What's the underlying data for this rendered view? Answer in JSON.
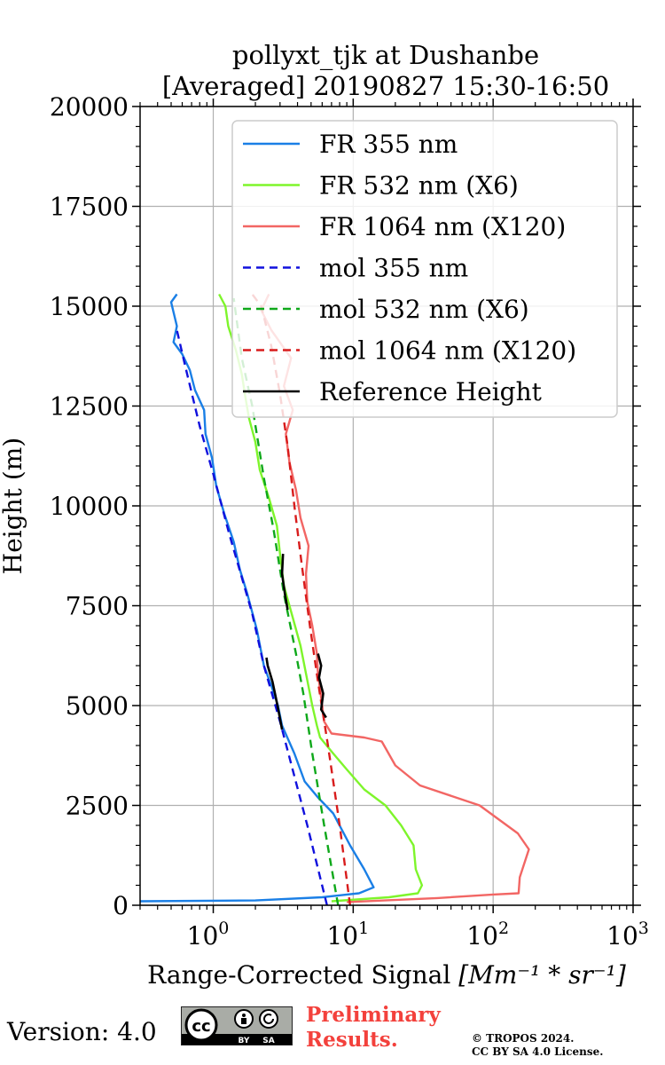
{
  "chart_data": {
    "type": "line",
    "title": "pollyxt_tjk at Dushanbe",
    "subtitle": "[Averaged] 20190827 15:30-16:50",
    "xlabel": "Range-Corrected Signal",
    "xlabel_unit": "[Mm⁻¹ * sr⁻¹]",
    "ylabel": "Height (m)",
    "xscale": "log",
    "xlim": [
      0.3,
      1000
    ],
    "ylim": [
      0,
      20000
    ],
    "grid": true,
    "legend_position": "top-right",
    "yticks": [
      0,
      2500,
      5000,
      7500,
      10000,
      12500,
      15000,
      17500,
      20000
    ],
    "xticks": [
      {
        "value": 1,
        "base": "10",
        "exp": "0"
      },
      {
        "value": 10,
        "base": "10",
        "exp": "1"
      },
      {
        "value": 100,
        "base": "10",
        "exp": "2"
      },
      {
        "value": 1000,
        "base": "10",
        "exp": "3"
      }
    ],
    "series": [
      {
        "name": "FR 355 nm",
        "color": "#1a7fe6",
        "style": "solid",
        "points": [
          [
            0.3,
            100
          ],
          [
            2,
            120
          ],
          [
            6,
            200
          ],
          [
            11,
            300
          ],
          [
            14,
            450
          ],
          [
            12,
            900
          ],
          [
            9.5,
            1500
          ],
          [
            7.2,
            2300
          ],
          [
            5.6,
            2700
          ],
          [
            4.5,
            3100
          ],
          [
            3.8,
            3800
          ],
          [
            3.1,
            4500
          ],
          [
            2.9,
            5000
          ],
          [
            2.6,
            5500
          ],
          [
            2.3,
            6000
          ],
          [
            2.05,
            6900
          ],
          [
            1.75,
            7800
          ],
          [
            1.55,
            8400
          ],
          [
            1.4,
            9100
          ],
          [
            1.2,
            9800
          ],
          [
            1.05,
            10500
          ],
          [
            0.98,
            11200
          ],
          [
            0.88,
            11800
          ],
          [
            0.86,
            12400
          ],
          [
            0.74,
            12900
          ],
          [
            0.68,
            13400
          ],
          [
            0.6,
            13800
          ],
          [
            0.52,
            14100
          ],
          [
            0.55,
            14500
          ],
          [
            0.5,
            15100
          ],
          [
            0.55,
            15300
          ]
        ]
      },
      {
        "name": "FR 532 nm (X6)",
        "color": "#7ef52b",
        "style": "solid",
        "points": [
          [
            7,
            100
          ],
          [
            18,
            200
          ],
          [
            29,
            300
          ],
          [
            31,
            500
          ],
          [
            28,
            900
          ],
          [
            27,
            1500
          ],
          [
            22,
            2000
          ],
          [
            17,
            2500
          ],
          [
            12,
            2900
          ],
          [
            9,
            3400
          ],
          [
            7.2,
            3800
          ],
          [
            5.8,
            4200
          ],
          [
            5.5,
            4500
          ],
          [
            5.1,
            5000
          ],
          [
            4.6,
            5800
          ],
          [
            4.2,
            6500
          ],
          [
            3.7,
            7200
          ],
          [
            3.2,
            8000
          ],
          [
            3.0,
            8800
          ],
          [
            2.85,
            9500
          ],
          [
            2.5,
            10200
          ],
          [
            2.15,
            10900
          ],
          [
            2.0,
            11600
          ],
          [
            1.8,
            12200
          ],
          [
            1.7,
            12700
          ],
          [
            1.6,
            13300
          ],
          [
            1.45,
            13900
          ],
          [
            1.28,
            14500
          ],
          [
            1.22,
            15000
          ],
          [
            1.1,
            15300
          ]
        ]
      },
      {
        "name": "FR 1064 nm (X120)",
        "color": "#f26664",
        "style": "solid",
        "points": [
          [
            9,
            80
          ],
          [
            40,
            180
          ],
          [
            100,
            270
          ],
          [
            152,
            300
          ],
          [
            155,
            700
          ],
          [
            180,
            1400
          ],
          [
            150,
            1800
          ],
          [
            80,
            2500
          ],
          [
            30,
            3000
          ],
          [
            20,
            3500
          ],
          [
            16,
            4100
          ],
          [
            12,
            4200
          ],
          [
            7,
            4300
          ],
          [
            6.2,
            4600
          ],
          [
            5.9,
            5200
          ],
          [
            5.6,
            5800
          ],
          [
            5.5,
            6300
          ],
          [
            5.1,
            7000
          ],
          [
            4.7,
            7600
          ],
          [
            4.6,
            8300
          ],
          [
            4.8,
            9000
          ],
          [
            4.2,
            9700
          ],
          [
            3.9,
            10400
          ],
          [
            3.5,
            11100
          ],
          [
            3.3,
            11800
          ],
          [
            3.7,
            12400
          ],
          [
            3.2,
            13000
          ],
          [
            3.6,
            13700
          ],
          [
            2.6,
            14400
          ],
          [
            2.2,
            14900
          ],
          [
            2.5,
            15300
          ]
        ]
      },
      {
        "name": "mol 355 nm",
        "color": "#1010dd",
        "style": "dashed",
        "points": [
          [
            6.5,
            0
          ],
          [
            4.7,
            2000
          ],
          [
            3.0,
            4600
          ],
          [
            2.3,
            6000
          ],
          [
            1.9,
            7300
          ],
          [
            1.3,
            9300
          ],
          [
            1.0,
            10800
          ],
          [
            0.8,
            12000
          ],
          [
            0.63,
            13500
          ],
          [
            0.55,
            14400
          ]
        ]
      },
      {
        "name": "mol 532 nm (X6)",
        "color": "#0ea81a",
        "style": "dashed",
        "points": [
          [
            7.8,
            0
          ],
          [
            6.2,
            2000
          ],
          [
            5.1,
            3800
          ],
          [
            4.4,
            5300
          ],
          [
            3.9,
            6300
          ],
          [
            3.2,
            7800
          ],
          [
            2.7,
            9400
          ],
          [
            2.3,
            10700
          ],
          [
            1.9,
            12500
          ],
          [
            1.6,
            13700
          ],
          [
            1.4,
            15200
          ]
        ]
      },
      {
        "name": "mol 1064 nm (X120)",
        "color": "#d81c1c",
        "style": "dashed",
        "points": [
          [
            9.5,
            0
          ],
          [
            8.0,
            2000
          ],
          [
            6.6,
            4000
          ],
          [
            5.6,
            5600
          ],
          [
            4.9,
            7000
          ],
          [
            4.3,
            8500
          ],
          [
            3.8,
            10000
          ],
          [
            3.4,
            11500
          ],
          [
            3.0,
            12800
          ],
          [
            2.6,
            14000
          ],
          [
            2.2,
            15000
          ],
          [
            1.9,
            15300
          ]
        ]
      },
      {
        "name": "Reference Height",
        "color": "#000000",
        "style": "solid",
        "segments": [
          [
            [
              3.1,
              4400
            ],
            [
              2.95,
              4800
            ],
            [
              2.8,
              5200
            ],
            [
              2.65,
              5600
            ],
            [
              2.45,
              6000
            ],
            [
              2.4,
              6200
            ]
          ],
          [
            [
              3.15,
              8800
            ],
            [
              3.1,
              8300
            ],
            [
              3.25,
              7800
            ],
            [
              3.4,
              7400
            ]
          ],
          [
            [
              6.4,
              4700
            ],
            [
              5.9,
              4900
            ],
            [
              6.1,
              5300
            ],
            [
              5.7,
              5700
            ],
            [
              5.9,
              6000
            ],
            [
              5.6,
              6300
            ]
          ]
        ]
      }
    ]
  },
  "footer": {
    "version": "Version: 4.0",
    "cc_label": "cc",
    "cc_by": "BY",
    "cc_sa": "SA",
    "preliminary_line1": "Preliminary",
    "preliminary_line2": "Results.",
    "copyright_line1": "© TROPOS 2024.",
    "copyright_line2": "CC BY SA 4.0 License."
  }
}
